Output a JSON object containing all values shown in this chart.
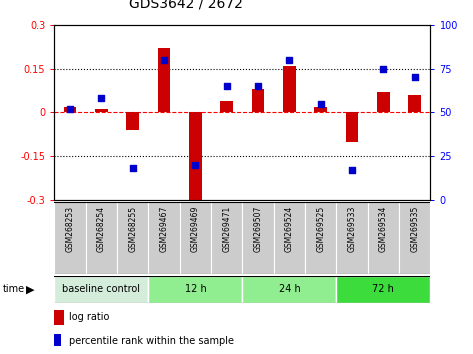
{
  "title": "GDS3642 / 2672",
  "samples": [
    "GSM268253",
    "GSM268254",
    "GSM268255",
    "GSM269467",
    "GSM269469",
    "GSM269471",
    "GSM269507",
    "GSM269524",
    "GSM269525",
    "GSM269533",
    "GSM269534",
    "GSM269535"
  ],
  "log_ratio": [
    0.02,
    0.01,
    -0.06,
    0.22,
    -0.3,
    0.04,
    0.08,
    0.16,
    0.02,
    -0.1,
    0.07,
    0.06
  ],
  "percentile_rank": [
    52,
    58,
    18,
    80,
    20,
    65,
    65,
    80,
    55,
    17,
    75,
    70
  ],
  "groups": [
    {
      "label": "baseline control",
      "start": 0,
      "end": 3,
      "color": "#d4edda"
    },
    {
      "label": "12 h",
      "start": 3,
      "end": 6,
      "color": "#90ee90"
    },
    {
      "label": "24 h",
      "start": 6,
      "end": 9,
      "color": "#90ee90"
    },
    {
      "label": "72 h",
      "start": 9,
      "end": 12,
      "color": "#3ddc3d"
    }
  ],
  "bar_color": "#cc0000",
  "dot_color": "#0000cc",
  "left_ylim": [
    -0.3,
    0.3
  ],
  "right_ylim": [
    0,
    100
  ],
  "left_yticks": [
    -0.3,
    -0.15,
    0.0,
    0.15,
    0.3
  ],
  "right_yticks": [
    0,
    25,
    50,
    75,
    100
  ],
  "left_ytick_labels": [
    "-0.3",
    "-0.15",
    "0",
    "0.15",
    "0.3"
  ],
  "right_ytick_labels": [
    "0",
    "25",
    "50",
    "75",
    "100"
  ],
  "hlines": [
    0.15,
    0.0,
    -0.15
  ],
  "hline_styles": [
    "dotted",
    "dashed",
    "dotted"
  ],
  "hline_colors": [
    "black",
    "red",
    "black"
  ],
  "bar_width": 0.4,
  "dot_size": 18
}
